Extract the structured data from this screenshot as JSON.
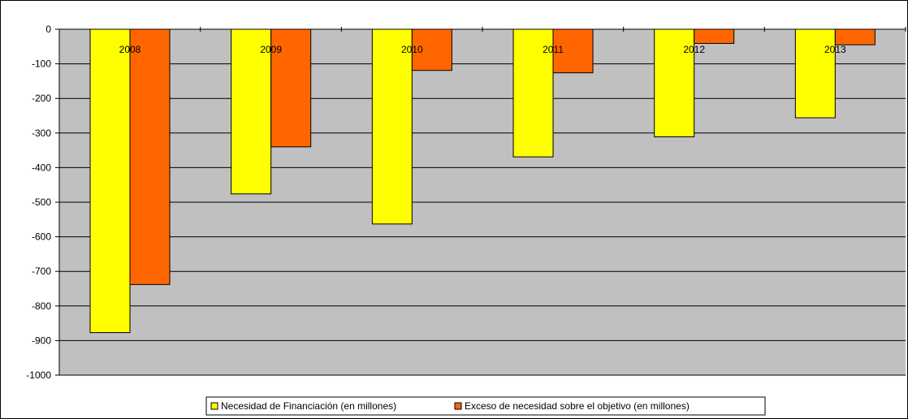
{
  "chart_data": {
    "type": "bar",
    "title": "",
    "xlabel": "",
    "ylabel": "",
    "categories": [
      "2008",
      "2009",
      "2010",
      "2011",
      "2012",
      "2013"
    ],
    "series": [
      {
        "name": "Necesidad de Financiación (en millones)",
        "color": "#FFFF00",
        "values": [
          -877,
          -476,
          -563,
          -369,
          -311,
          -256
        ]
      },
      {
        "name": "Exceso de necesidad sobre el objetivo (en millones)",
        "color": "#FF6600",
        "values": [
          -738,
          -340,
          -119,
          -126,
          -41,
          -45
        ]
      }
    ],
    "y_ticks": [
      "0",
      "-100",
      "-200",
      "-300",
      "-400",
      "-500",
      "-600",
      "-700",
      "-800",
      "-900",
      "-1000"
    ],
    "ylim": [
      -1000,
      0
    ],
    "grid": true,
    "legend_position": "bottom",
    "plot_background": "#C0C0C0"
  }
}
